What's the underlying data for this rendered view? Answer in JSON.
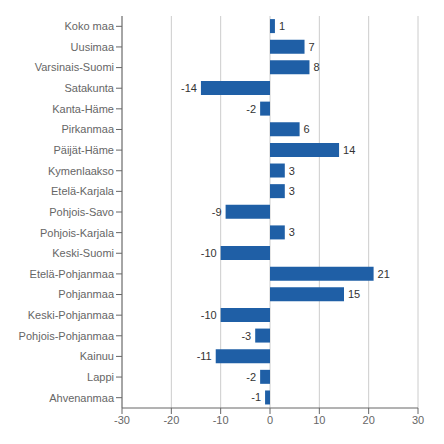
{
  "chart_data": {
    "type": "bar",
    "orientation": "horizontal",
    "categories": [
      "Koko maa",
      "Uusimaa",
      "Varsinais-Suomi",
      "Satakunta",
      "Kanta-Häme",
      "Pirkanmaa",
      "Päijät-Häme",
      "Kymenlaakso",
      "Etelä-Karjala",
      "Pohjois-Savo",
      "Pohjois-Karjala",
      "Keski-Suomi",
      "Etelä-Pohjanmaa",
      "Pohjanmaa",
      "Keski-Pohjanmaa",
      "Pohjois-Pohjanmaa",
      "Kainuu",
      "Lappi",
      "Ahvenanmaa"
    ],
    "values": [
      1,
      7,
      8,
      -14,
      -2,
      6,
      14,
      3,
      3,
      -9,
      3,
      -10,
      21,
      15,
      -10,
      -3,
      -11,
      -2,
      -1
    ],
    "color": "#1F5FA6",
    "xlim": [
      -30,
      30
    ],
    "xticks": [
      -30,
      -20,
      -10,
      0,
      10,
      20,
      30
    ],
    "grid": true,
    "data_labels": true
  }
}
